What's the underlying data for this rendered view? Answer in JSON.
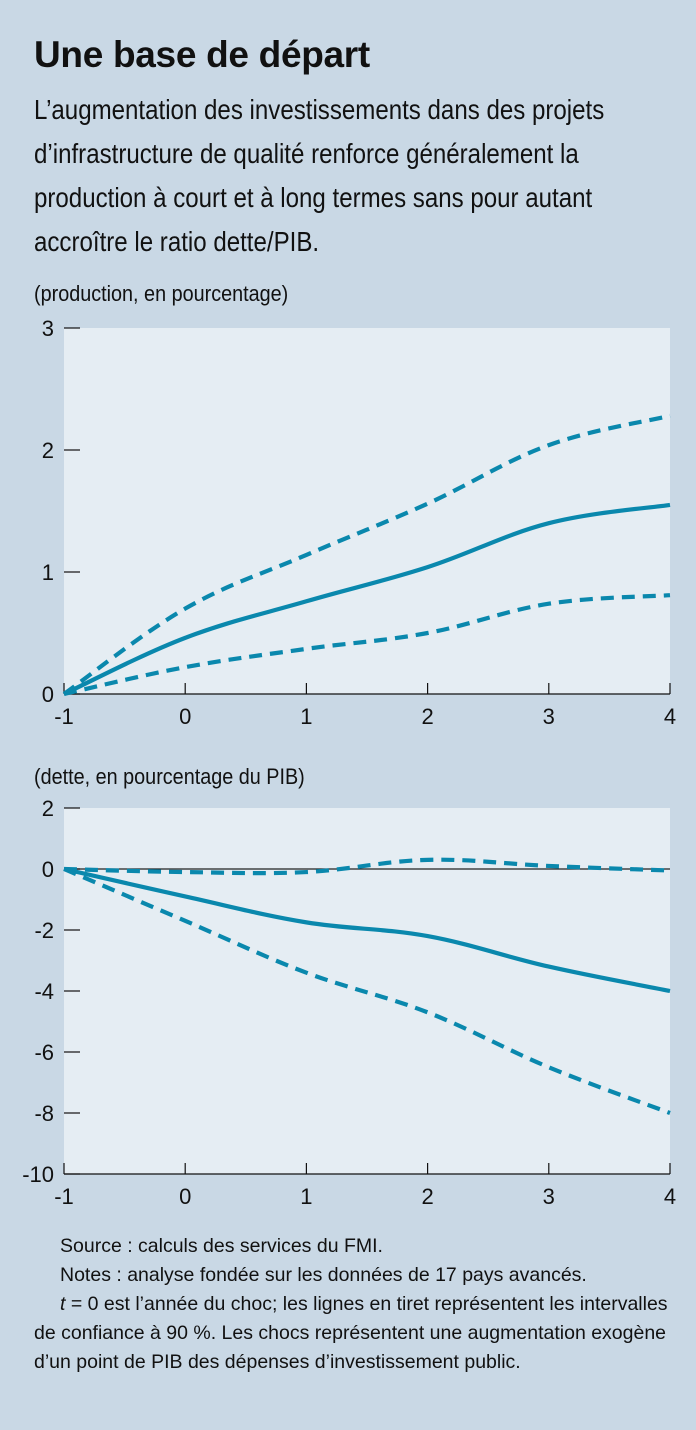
{
  "header": {
    "title": "Une base de départ",
    "subtitle": "L’augmentation des investissements dans des projets d’infrastructure de qualité renforce généralement la production à court et à long termes sans pour autant accroître le ratio dette/PIB."
  },
  "colors": {
    "line": "#0a88ad",
    "plot_bg": "#e5edf3",
    "page_bg": "#c9d8e5"
  },
  "chart_data": [
    {
      "type": "line",
      "unit_label": "(production, en pourcentage)",
      "x": [
        -1,
        0,
        1,
        2,
        3,
        4
      ],
      "xlim": [
        -1,
        4
      ],
      "ylim": [
        0,
        3
      ],
      "yticks": [
        0,
        1,
        2,
        3
      ],
      "series": [
        {
          "style": "solid",
          "values": [
            0,
            0.46,
            0.76,
            1.04,
            1.4,
            1.55
          ]
        },
        {
          "style": "dashed",
          "values": [
            0,
            0.7,
            1.14,
            1.56,
            2.04,
            2.28
          ]
        },
        {
          "style": "dashed",
          "values": [
            0,
            0.22,
            0.37,
            0.5,
            0.74,
            0.81
          ]
        }
      ]
    },
    {
      "type": "line",
      "unit_label": "(dette, en pourcentage du PIB)",
      "x": [
        -1,
        0,
        1,
        2,
        3,
        4
      ],
      "xlim": [
        -1,
        4
      ],
      "ylim": [
        -10,
        2
      ],
      "yticks": [
        -10,
        -8,
        -6,
        -4,
        -2,
        0,
        2
      ],
      "zero_line": true,
      "series": [
        {
          "style": "solid",
          "values": [
            0,
            -0.9,
            -1.75,
            -2.2,
            -3.2,
            -4.0
          ]
        },
        {
          "style": "dashed",
          "values": [
            0,
            -0.1,
            -0.1,
            0.3,
            0.1,
            -0.05
          ]
        },
        {
          "style": "dashed",
          "values": [
            0,
            -1.7,
            -3.4,
            -4.7,
            -6.5,
            -8.0
          ]
        }
      ]
    }
  ],
  "notes": {
    "source": "Source : calculs des services du FMI.",
    "notes": "Notes : analyse fondée sur les données de 17 pays avancés.",
    "t_symbol": "t",
    "t_rest": " = 0 est l’année du choc; les lignes en tiret représentent les intervalles de confiance à 90 %. Les chocs représentent une augmentation exogène d’un point de PIB des dépenses d’investissement public."
  }
}
